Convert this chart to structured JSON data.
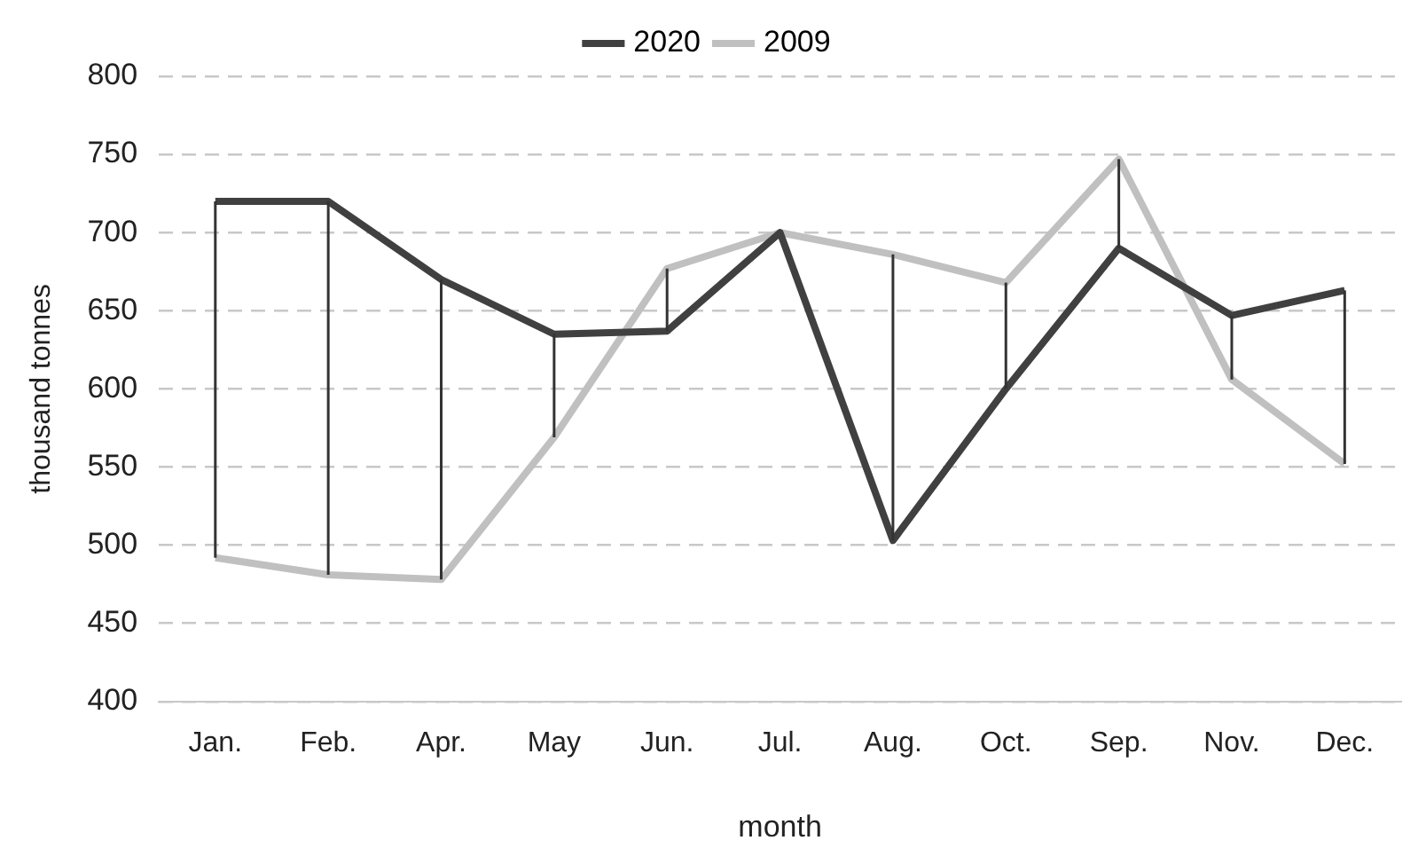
{
  "chart_data": {
    "type": "line",
    "xlabel": "month",
    "ylabel": "thousand tonnes",
    "categories": [
      "Jan.",
      "Feb.",
      "Apr.",
      "May",
      "Jun.",
      "Jul.",
      "Aug.",
      "Oct.",
      "Sep.",
      "Nov.",
      "Dec."
    ],
    "series": [
      {
        "name": "2020",
        "color": "#404040",
        "values": [
          720,
          720,
          670,
          635,
          637,
          700,
          503,
          600,
          690,
          647,
          663
        ],
        "errors": [
          [
            492,
            720
          ],
          [
            481,
            720
          ],
          [
            478,
            670
          ],
          [
            569,
            635
          ],
          [
            637,
            677
          ],
          null,
          [
            503,
            686
          ],
          [
            600,
            668
          ],
          [
            690,
            747
          ],
          [
            606,
            647
          ],
          [
            552,
            663
          ]
        ]
      },
      {
        "name": "2009",
        "color": "#c0c0c0",
        "values": [
          492,
          481,
          478,
          569,
          677,
          700,
          686,
          668,
          747,
          606,
          552
        ]
      }
    ],
    "ylim": [
      400,
      800
    ],
    "yticks": [
      400,
      450,
      500,
      550,
      600,
      650,
      700,
      750,
      800
    ],
    "grid": "y",
    "legend": "top",
    "marker": "none",
    "line_style": "solid"
  }
}
